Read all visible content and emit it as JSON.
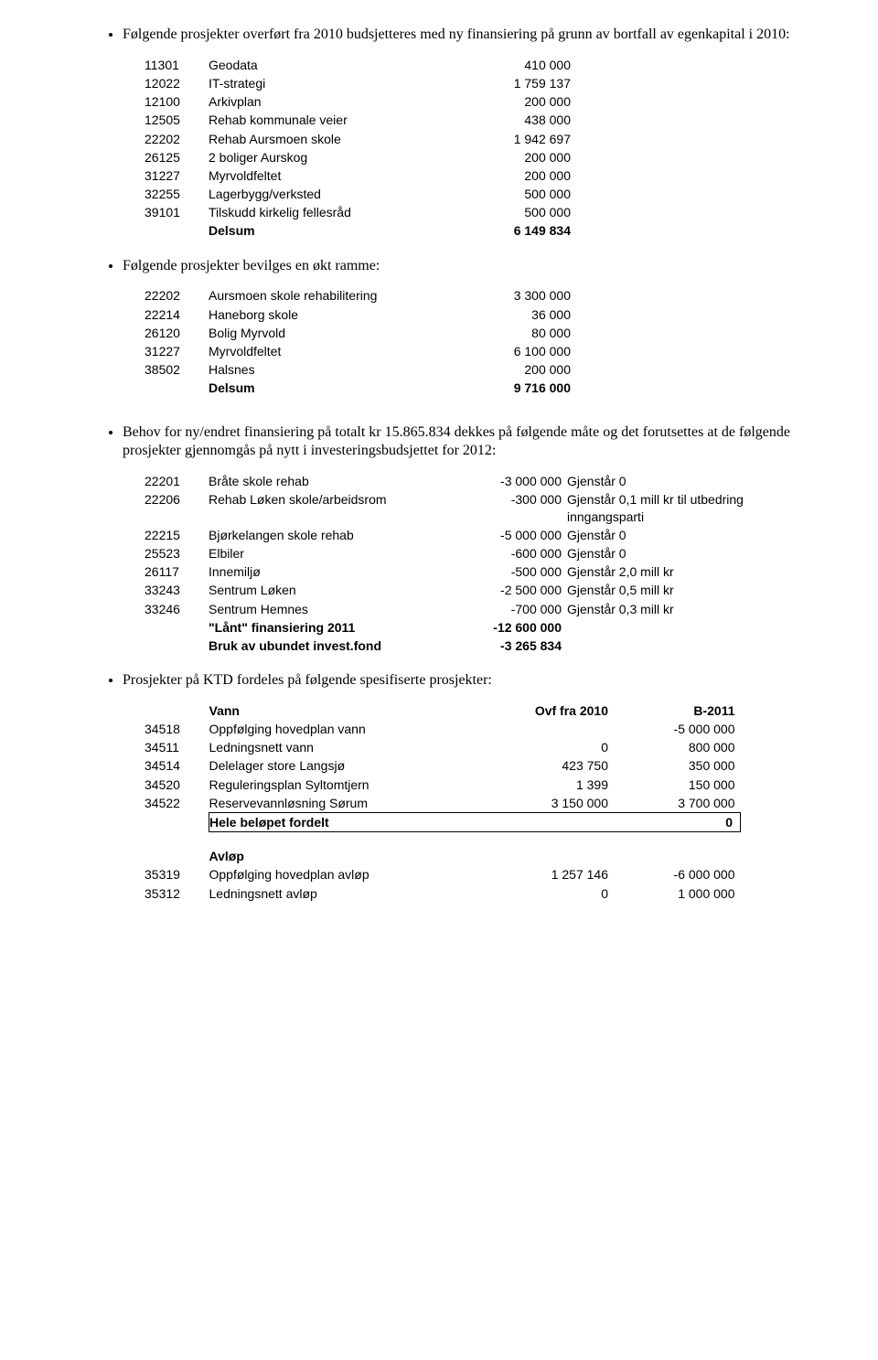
{
  "para1": {
    "bullet": "Følgende prosjekter overført fra 2010 budsjetteres med ny finansiering på grunn av bortfall av egenkapital i 2010:"
  },
  "t1": {
    "rows": [
      {
        "code": "11301",
        "label": "Geodata",
        "val": "410 000"
      },
      {
        "code": "12022",
        "label": "IT-strategi",
        "val": "1 759 137"
      },
      {
        "code": "12100",
        "label": "Arkivplan",
        "val": "200 000"
      },
      {
        "code": "12505",
        "label": "Rehab kommunale veier",
        "val": "438 000"
      },
      {
        "code": "22202",
        "label": "Rehab Aursmoen skole",
        "val": "1 942 697"
      },
      {
        "code": "26125",
        "label": "2 boliger Aurskog",
        "val": "200 000"
      },
      {
        "code": "31227",
        "label": "Myrvoldfeltet",
        "val": "200 000"
      },
      {
        "code": "32255",
        "label": "Lagerbygg/verksted",
        "val": "500 000"
      },
      {
        "code": "39101",
        "label": "Tilskudd kirkelig fellesråd",
        "val": "500 000"
      }
    ],
    "sum_label": "Delsum",
    "sum_val": "6 149 834"
  },
  "para2": {
    "bullet": "Følgende prosjekter bevilges en økt ramme:"
  },
  "t2": {
    "rows": [
      {
        "code": "22202",
        "label": "Aursmoen skole rehabilitering",
        "val": "3 300 000"
      },
      {
        "code": "22214",
        "label": "Haneborg skole",
        "val": "36 000"
      },
      {
        "code": "26120",
        "label": "Bolig Myrvold",
        "val": "80 000"
      },
      {
        "code": "31227",
        "label": "Myrvoldfeltet",
        "val": "6 100 000"
      },
      {
        "code": "38502",
        "label": "Halsnes",
        "val": "200 000"
      }
    ],
    "sum_label": "Delsum",
    "sum_val": "9 716 000"
  },
  "para3": {
    "bullet": "Behov for ny/endret finansiering på totalt kr 15.865.834 dekkes på følgende måte og det forutsettes at de følgende prosjekter gjennomgås på nytt i investeringsbudsjettet for 2012:"
  },
  "t3": {
    "rows": [
      {
        "code": "22201",
        "label": "Bråte  skole rehab",
        "val": "-3 000 000",
        "note": "Gjenstår 0"
      },
      {
        "code": "22206",
        "label": "Rehab Løken skole/arbeidsrom",
        "val": "-300 000",
        "note": "Gjenstår  0,1 mill kr til utbedring inngangsparti"
      },
      {
        "code": "22215",
        "label": "Bjørkelangen skole rehab",
        "val": "-5 000 000",
        "note": "Gjenstår 0"
      },
      {
        "code": "25523",
        "label": "Elbiler",
        "val": "-600 000",
        "note": "Gjenstår 0"
      },
      {
        "code": "26117",
        "label": "Innemiljø",
        "val": "-500 000",
        "note": "Gjenstår 2,0 mill kr"
      },
      {
        "code": "33243",
        "label": "Sentrum Løken",
        "val": "-2 500 000",
        "note": "Gjenstår 0,5 mill kr"
      },
      {
        "code": "33246",
        "label": "Sentrum Hemnes",
        "val": "-700 000",
        "note": "Gjenstår 0,3 mill kr"
      }
    ],
    "laant_label": "\"Lånt\" finansiering 2011",
    "laant_val": "-12 600 000",
    "bruk_label": "Bruk av ubundet invest.fond",
    "bruk_val": "-3 265 834"
  },
  "para4": {
    "bullet": "Prosjekter på KTD fordeles på følgende spesifiserte prosjekter:"
  },
  "t4": {
    "header": {
      "vann": "Vann",
      "h1": "Ovf fra 2010",
      "h2": "B-2011"
    },
    "rows": [
      {
        "code": "34518",
        "label": "Oppfølging hovedplan vann",
        "v1": "",
        "v2": "-5 000 000"
      },
      {
        "code": "34511",
        "label": "Ledningsnett vann",
        "v1": "0",
        "v2": "800 000"
      },
      {
        "code": "34514",
        "label": "Delelager store Langsjø",
        "v1": "423 750",
        "v2": "350 000"
      },
      {
        "code": "34520",
        "label": "Reguleringsplan Syltomtjern",
        "v1": "1 399",
        "v2": "150 000"
      },
      {
        "code": "34522",
        "label": "Reservevannløsning Sørum",
        "v1": "3 150 000",
        "v2": "3 700 000"
      }
    ],
    "hele_label": "Hele beløpet fordelt",
    "hele_val": "0",
    "avlop": {
      "title": "Avløp",
      "rows": [
        {
          "code": "35319",
          "label": "Oppfølging hovedplan avløp",
          "v1": "1 257 146",
          "v2": "-6 000 000"
        },
        {
          "code": "35312",
          "label": "Ledningsnett avløp",
          "v1": "0",
          "v2": "1 000 000"
        }
      ]
    }
  }
}
